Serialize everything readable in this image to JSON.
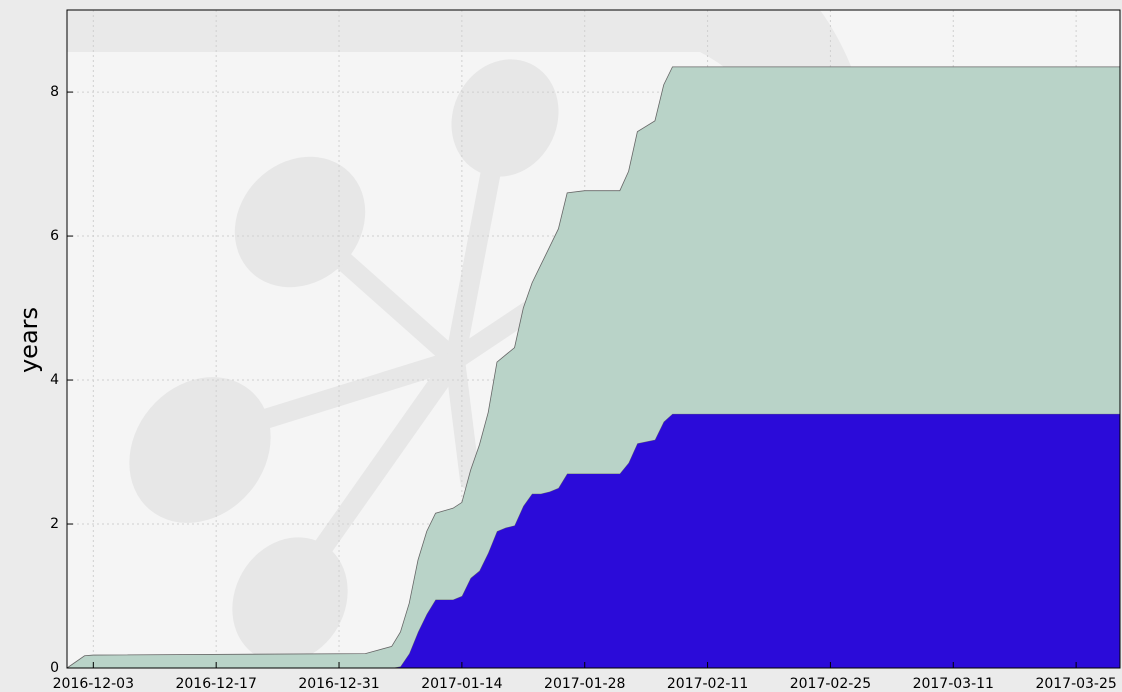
{
  "chart_data": {
    "type": "stacked-area",
    "y_label": "years",
    "x": [
      "2016-11-30",
      "2016-12-02",
      "2016-12-03",
      "2017-01-03",
      "2017-01-06",
      "2017-01-07",
      "2017-01-08",
      "2017-01-09",
      "2017-01-10",
      "2017-01-11",
      "2017-01-13",
      "2017-01-14",
      "2017-01-15",
      "2017-01-16",
      "2017-01-17",
      "2017-01-18",
      "2017-01-19",
      "2017-01-20",
      "2017-01-21",
      "2017-01-22",
      "2017-01-23",
      "2017-01-24",
      "2017-01-25",
      "2017-01-26",
      "2017-01-28",
      "2017-02-01",
      "2017-02-02",
      "2017-02-03",
      "2017-02-05",
      "2017-02-06",
      "2017-02-07",
      "2017-03-30"
    ],
    "series": [
      {
        "color": "#2b0bd9",
        "values": [
          0,
          0,
          0,
          0,
          0,
          0.02,
          0.2,
          0.5,
          0.75,
          0.95,
          0.95,
          1.0,
          1.25,
          1.35,
          1.6,
          1.9,
          1.95,
          1.98,
          2.25,
          2.42,
          2.42,
          2.45,
          2.5,
          2.7,
          2.7,
          2.7,
          2.85,
          3.12,
          3.17,
          3.42,
          3.53,
          3.53
        ]
      },
      {
        "color": "#b9d3c8",
        "values": [
          0,
          0.17,
          0.18,
          0.2,
          0.3,
          0.48,
          0.7,
          1.0,
          1.15,
          1.2,
          1.27,
          1.3,
          1.5,
          1.75,
          1.95,
          2.35,
          2.4,
          2.47,
          2.75,
          2.93,
          3.18,
          3.4,
          3.6,
          3.9,
          3.93,
          3.93,
          4.05,
          4.33,
          4.43,
          4.68,
          4.82,
          4.82
        ]
      }
    ],
    "xlim": [
      "2016-11-30",
      "2017-03-30"
    ],
    "xticks": [
      "2016-12-03",
      "2016-12-17",
      "2016-12-31",
      "2017-01-14",
      "2017-01-28",
      "2017-02-11",
      "2017-02-25",
      "2017-03-11",
      "2017-03-25"
    ],
    "ylim": [
      0,
      9.14
    ],
    "yticks": [
      0,
      2,
      4,
      6,
      8
    ],
    "grid": true
  }
}
